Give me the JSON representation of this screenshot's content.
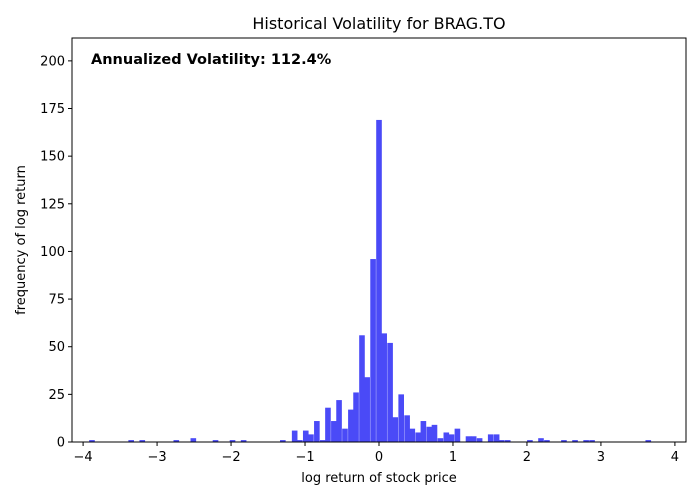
{
  "chart_data": {
    "type": "bar",
    "title": "Historical Volatility for BRAG.TO",
    "xlabel": "log return of stock price",
    "ylabel": "frequency of log return",
    "annotation": "Annualized Volatility: 112.4%",
    "xlim": [
      -4.15,
      4.15
    ],
    "ylim": [
      0,
      212
    ],
    "xticks": [
      -4,
      -3,
      -2,
      -1,
      0,
      1,
      2,
      3,
      4
    ],
    "xtick_labels": [
      "−4",
      "−3",
      "−2",
      "−1",
      "0",
      "1",
      "2",
      "3",
      "4"
    ],
    "yticks": [
      0,
      25,
      50,
      75,
      100,
      125,
      150,
      175,
      200
    ],
    "ytick_labels": [
      "0",
      "25",
      "50",
      "75",
      "100",
      "125",
      "150",
      "175",
      "200"
    ],
    "bar_color": "#4a4af7",
    "bin_width": 0.0758,
    "bins": [
      {
        "x": -3.88,
        "y": 1
      },
      {
        "x": -3.35,
        "y": 1
      },
      {
        "x": -3.2,
        "y": 1
      },
      {
        "x": -2.74,
        "y": 1
      },
      {
        "x": -2.51,
        "y": 2
      },
      {
        "x": -2.21,
        "y": 1
      },
      {
        "x": -1.98,
        "y": 1
      },
      {
        "x": -1.83,
        "y": 1
      },
      {
        "x": -1.3,
        "y": 1
      },
      {
        "x": -1.14,
        "y": 6
      },
      {
        "x": -1.07,
        "y": 1
      },
      {
        "x": -0.99,
        "y": 6
      },
      {
        "x": -0.92,
        "y": 4
      },
      {
        "x": -0.84,
        "y": 11
      },
      {
        "x": -0.76,
        "y": 1
      },
      {
        "x": -0.69,
        "y": 18
      },
      {
        "x": -0.61,
        "y": 11
      },
      {
        "x": -0.54,
        "y": 22
      },
      {
        "x": -0.46,
        "y": 7
      },
      {
        "x": -0.38,
        "y": 17
      },
      {
        "x": -0.31,
        "y": 26
      },
      {
        "x": -0.23,
        "y": 56
      },
      {
        "x": -0.16,
        "y": 34
      },
      {
        "x": -0.08,
        "y": 96
      },
      {
        "x": 0.0,
        "y": 169
      },
      {
        "x": 0.07,
        "y": 57
      },
      {
        "x": 0.15,
        "y": 52
      },
      {
        "x": 0.22,
        "y": 13
      },
      {
        "x": 0.3,
        "y": 25
      },
      {
        "x": 0.38,
        "y": 14
      },
      {
        "x": 0.45,
        "y": 7
      },
      {
        "x": 0.53,
        "y": 5
      },
      {
        "x": 0.6,
        "y": 11
      },
      {
        "x": 0.68,
        "y": 8
      },
      {
        "x": 0.75,
        "y": 9
      },
      {
        "x": 0.83,
        "y": 2
      },
      {
        "x": 0.91,
        "y": 5
      },
      {
        "x": 0.98,
        "y": 4
      },
      {
        "x": 1.06,
        "y": 7
      },
      {
        "x": 1.21,
        "y": 3
      },
      {
        "x": 1.28,
        "y": 3
      },
      {
        "x": 1.36,
        "y": 2
      },
      {
        "x": 1.51,
        "y": 4
      },
      {
        "x": 1.59,
        "y": 4
      },
      {
        "x": 1.66,
        "y": 1
      },
      {
        "x": 1.74,
        "y": 1
      },
      {
        "x": 2.04,
        "y": 1
      },
      {
        "x": 2.19,
        "y": 2
      },
      {
        "x": 2.27,
        "y": 1
      },
      {
        "x": 2.5,
        "y": 1
      },
      {
        "x": 2.65,
        "y": 1
      },
      {
        "x": 2.8,
        "y": 1
      },
      {
        "x": 2.88,
        "y": 1
      },
      {
        "x": 3.64,
        "y": 1
      }
    ]
  }
}
